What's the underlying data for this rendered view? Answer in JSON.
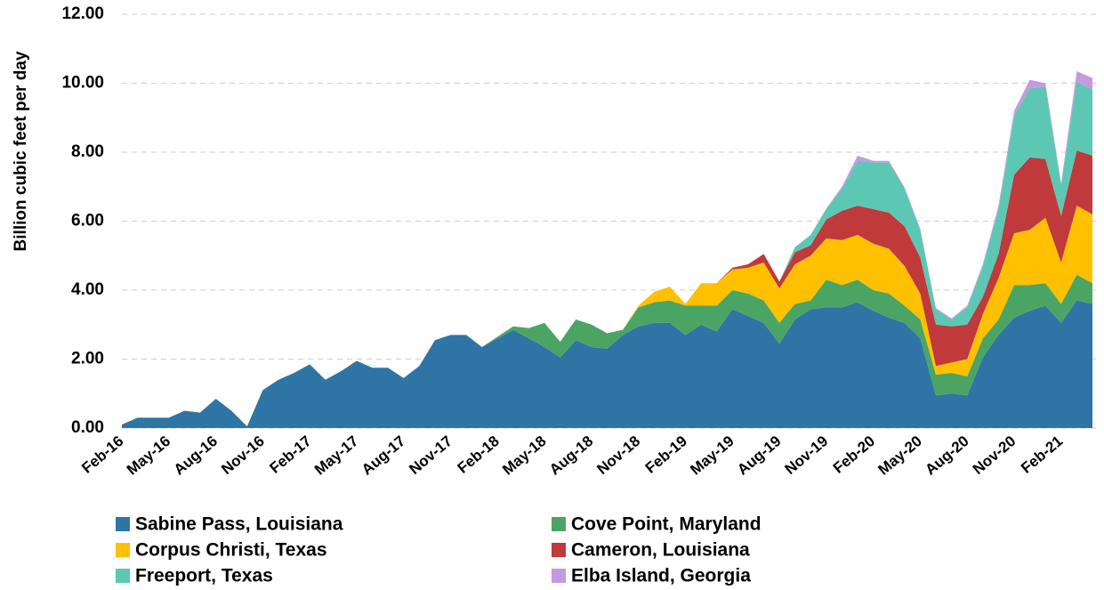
{
  "chart_data": {
    "type": "stacked_area",
    "y_label": "Billion cubic feet per day",
    "categories": [
      "Feb-16",
      null,
      null,
      "May-16",
      null,
      null,
      "Aug-16",
      null,
      null,
      "Nov-16",
      null,
      null,
      "Feb-17",
      null,
      null,
      "May-17",
      null,
      null,
      "Aug-17",
      null,
      null,
      "Nov-17",
      null,
      null,
      "Feb-18",
      null,
      null,
      "May-18",
      null,
      null,
      "Aug-18",
      null,
      null,
      "Nov-18",
      null,
      null,
      "Feb-19",
      null,
      null,
      "May-19",
      null,
      null,
      "Aug-19",
      null,
      null,
      "Nov-19",
      null,
      null,
      "Feb-20",
      null,
      null,
      "May-20",
      null,
      null,
      "Aug-20",
      null,
      null,
      "Nov-20",
      null,
      null,
      "Feb-21",
      null,
      null
    ],
    "series": [
      {
        "name": "Sabine Pass, Louisiana",
        "color": "#2e75a6",
        "values": [
          0.1,
          0.3,
          0.3,
          0.3,
          0.5,
          0.45,
          0.85,
          0.5,
          0.05,
          1.1,
          1.4,
          1.6,
          1.85,
          1.4,
          1.65,
          1.95,
          1.75,
          1.75,
          1.45,
          1.8,
          2.55,
          2.7,
          2.7,
          2.35,
          2.6,
          2.85,
          2.6,
          2.35,
          2.05,
          2.55,
          2.35,
          2.3,
          2.7,
          2.95,
          3.05,
          3.05,
          2.7,
          3.0,
          2.8,
          3.45,
          3.25,
          3.05,
          2.45,
          3.15,
          3.45,
          3.5,
          3.5,
          3.65,
          3.4,
          3.2,
          3.05,
          2.6,
          0.95,
          1.0,
          0.95,
          2.05,
          2.7,
          3.2,
          3.4,
          3.55,
          3.05,
          3.7,
          3.6
        ]
      },
      {
        "name": "Cove Point, Maryland",
        "color": "#4aa564",
        "values": [
          0,
          0,
          0,
          0,
          0,
          0,
          0,
          0,
          0,
          0,
          0,
          0,
          0,
          0,
          0,
          0,
          0,
          0,
          0,
          0,
          0,
          0,
          0,
          0,
          0.05,
          0.1,
          0.3,
          0.7,
          0.45,
          0.6,
          0.65,
          0.45,
          0.15,
          0.55,
          0.6,
          0.65,
          0.85,
          0.55,
          0.75,
          0.55,
          0.65,
          0.65,
          0.6,
          0.45,
          0.25,
          0.8,
          0.65,
          0.65,
          0.6,
          0.7,
          0.5,
          0.55,
          0.6,
          0.6,
          0.55,
          0.55,
          0.45,
          0.95,
          0.75,
          0.65,
          0.55,
          0.75,
          0.6
        ]
      },
      {
        "name": "Corpus Christi, Texas",
        "color": "#ffc000",
        "values": [
          0,
          0,
          0,
          0,
          0,
          0,
          0,
          0,
          0,
          0,
          0,
          0,
          0,
          0,
          0,
          0,
          0,
          0,
          0,
          0,
          0,
          0,
          0,
          0,
          0,
          0,
          0,
          0,
          0,
          0,
          0,
          0,
          0,
          0.05,
          0.3,
          0.4,
          0.05,
          0.65,
          0.65,
          0.6,
          0.75,
          1.1,
          1.0,
          1.15,
          1.3,
          1.2,
          1.3,
          1.3,
          1.35,
          1.3,
          1.15,
          0.75,
          0.25,
          0.3,
          0.5,
          0.7,
          1.2,
          1.5,
          1.6,
          1.9,
          1.2,
          2.0,
          2.0
        ]
      },
      {
        "name": "Cameron, Louisiana",
        "color": "#c0393b",
        "values": [
          0,
          0,
          0,
          0,
          0,
          0,
          0,
          0,
          0,
          0,
          0,
          0,
          0,
          0,
          0,
          0,
          0,
          0,
          0,
          0,
          0,
          0,
          0,
          0,
          0,
          0,
          0,
          0,
          0,
          0,
          0,
          0,
          0,
          0,
          0,
          0,
          0,
          0,
          0,
          0.05,
          0.1,
          0.25,
          0.2,
          0.35,
          0.3,
          0.55,
          0.85,
          0.85,
          1.0,
          1.05,
          1.15,
          1.05,
          1.2,
          1.05,
          1.0,
          0.5,
          0.7,
          1.7,
          2.1,
          1.7,
          1.35,
          1.6,
          1.7
        ]
      },
      {
        "name": "Freeport, Texas",
        "color": "#5cc8b4",
        "values": [
          0,
          0,
          0,
          0,
          0,
          0,
          0,
          0,
          0,
          0,
          0,
          0,
          0,
          0,
          0,
          0,
          0,
          0,
          0,
          0,
          0,
          0,
          0,
          0,
          0,
          0,
          0,
          0,
          0,
          0,
          0,
          0,
          0,
          0,
          0,
          0,
          0,
          0,
          0,
          0,
          0,
          0,
          0,
          0.15,
          0.3,
          0.3,
          0.65,
          1.3,
          1.35,
          1.45,
          1.1,
          0.8,
          0.45,
          0.2,
          0.5,
          0.9,
          1.3,
          1.7,
          2.0,
          2.1,
          0.9,
          2.0,
          1.9
        ]
      },
      {
        "name": "Elba Island, Georgia",
        "color": "#c39be0",
        "values": [
          0,
          0,
          0,
          0,
          0,
          0,
          0,
          0,
          0,
          0,
          0,
          0,
          0,
          0,
          0,
          0,
          0,
          0,
          0,
          0,
          0,
          0,
          0,
          0,
          0,
          0,
          0,
          0,
          0,
          0,
          0,
          0,
          0,
          0,
          0,
          0,
          0,
          0,
          0,
          0,
          0,
          0,
          0,
          0,
          0,
          0.02,
          0.05,
          0.15,
          0.05,
          0.05,
          0.03,
          0.03,
          0.03,
          0.03,
          0.05,
          0.05,
          0.1,
          0.15,
          0.25,
          0.1,
          0.05,
          0.3,
          0.35
        ]
      }
    ],
    "ylim": [
      0,
      12
    ],
    "yticks": [
      {
        "value": 0,
        "label": "0.00"
      },
      {
        "value": 2,
        "label": "2.00"
      },
      {
        "value": 4,
        "label": "4.00"
      },
      {
        "value": 6,
        "label": "6.00"
      },
      {
        "value": 8,
        "label": "8.00"
      },
      {
        "value": 10,
        "label": "10.00"
      },
      {
        "value": 12,
        "label": "12.00"
      }
    ],
    "grid": true,
    "legend": "bottom"
  }
}
